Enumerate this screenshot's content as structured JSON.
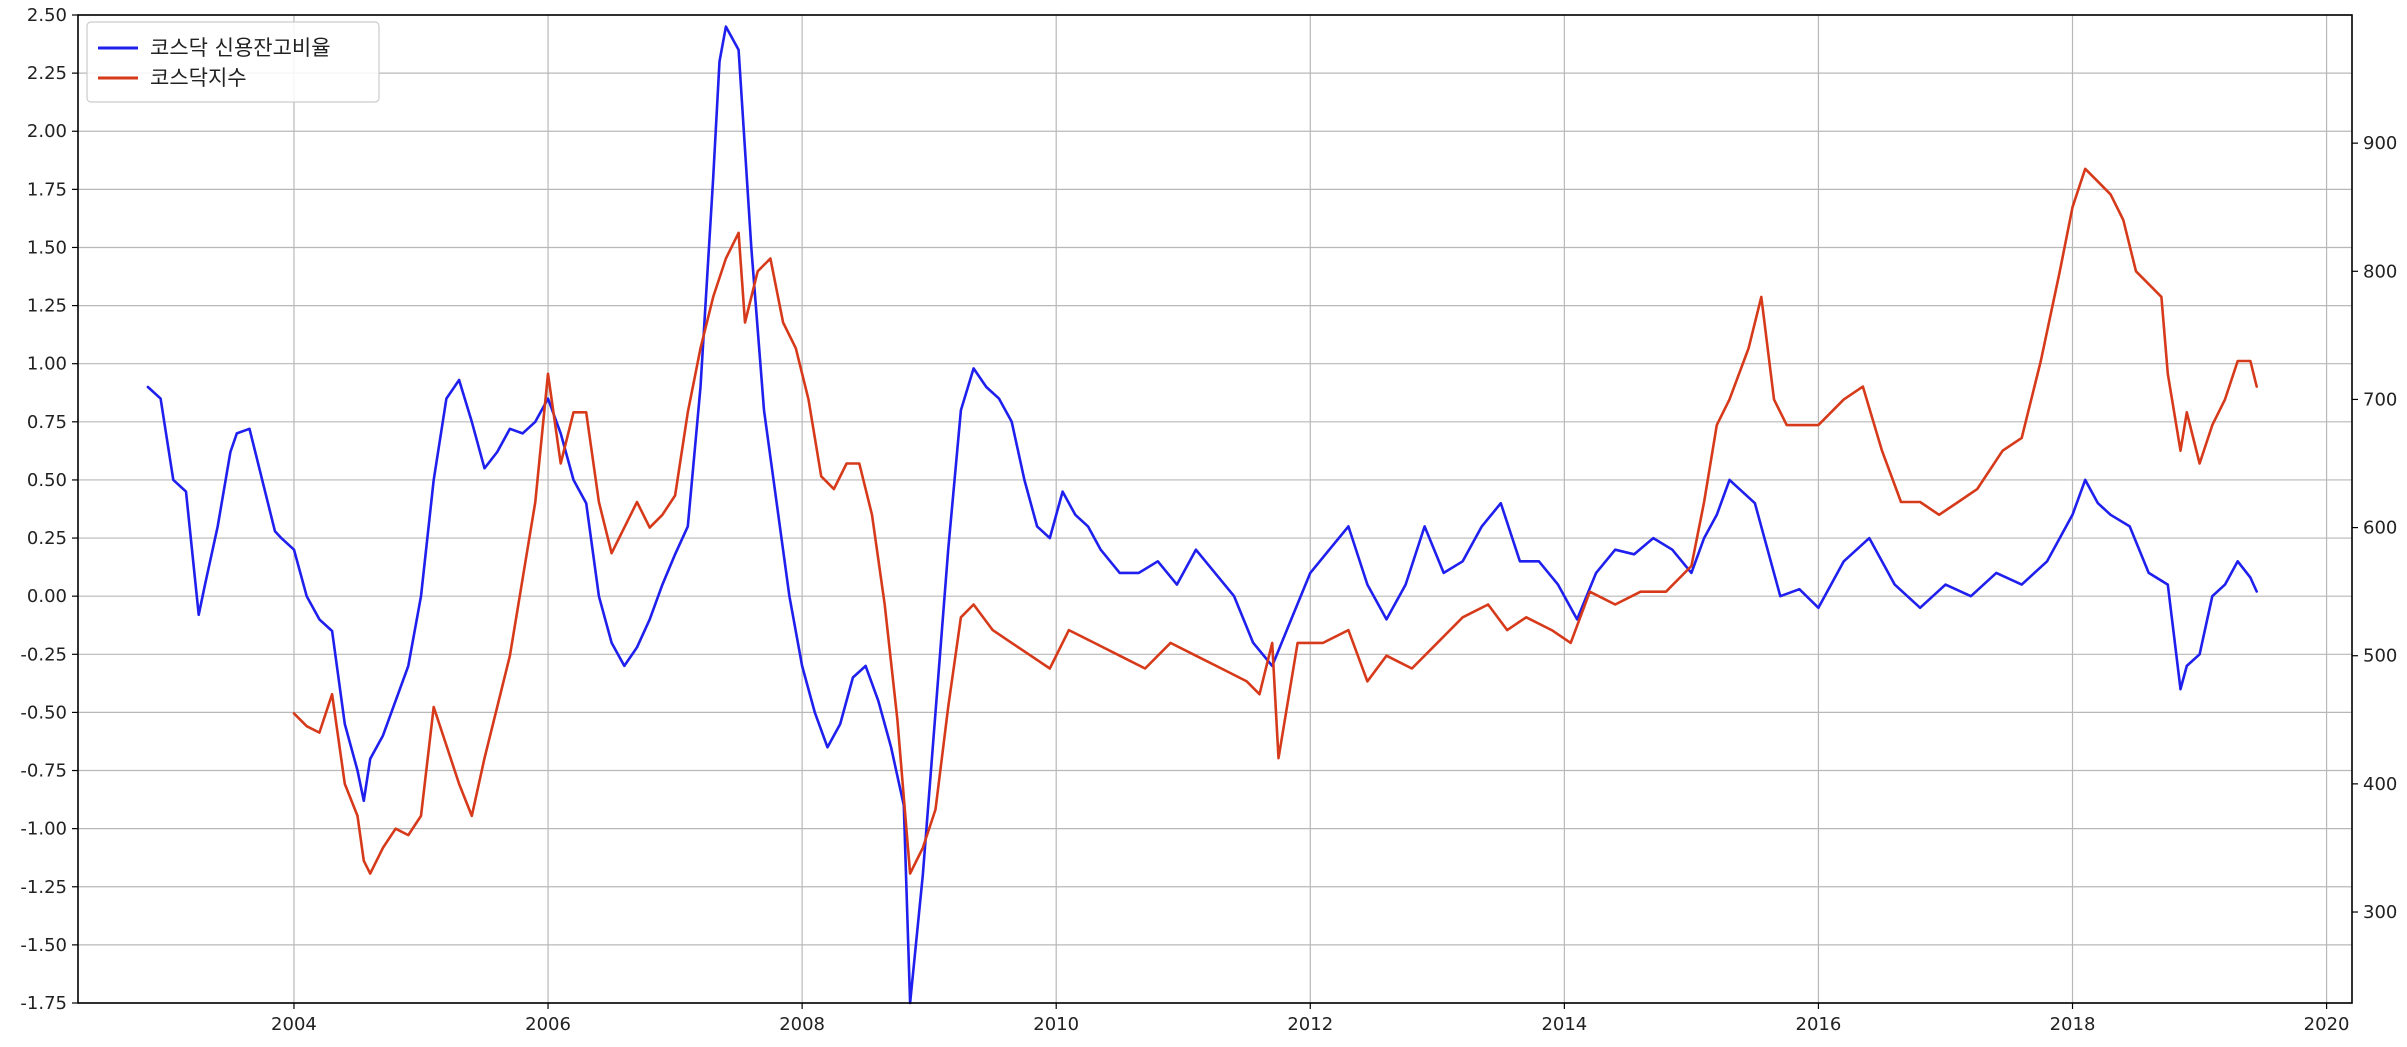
{
  "chart_data": {
    "type": "line",
    "title": "",
    "xlabel": "",
    "ylabel": "",
    "xlim": [
      2002.3,
      2020.2
    ],
    "x_ticks": [
      2004,
      2006,
      2008,
      2010,
      2012,
      2014,
      2016,
      2018,
      2020
    ],
    "y_left": {
      "ylim": [
        -1.75,
        2.5
      ],
      "ticks": [
        "2.50",
        "2.25",
        "2.00",
        "1.75",
        "1.50",
        "1.25",
        "1.00",
        "0.75",
        "0.50",
        "0.25",
        "0.00",
        "-0.25",
        "-0.50",
        "-0.75",
        "-1.00",
        "-1.25",
        "-1.50",
        "-1.75"
      ]
    },
    "y_right": {
      "ylim": [
        229,
        1000
      ],
      "ticks": [
        "900",
        "800",
        "700",
        "600",
        "500",
        "400",
        "300"
      ]
    },
    "grid": true,
    "legend_position": "top-left",
    "series": [
      {
        "name": "코스닥 신용잔고비율",
        "axis": "left",
        "color": "#1f1fee",
        "x": [
          2002.85,
          2002.95,
          2003.05,
          2003.15,
          2003.25,
          2003.3,
          2003.4,
          2003.5,
          2003.55,
          2003.65,
          2003.75,
          2003.85,
          2003.9,
          2004.0,
          2004.1,
          2004.2,
          2004.3,
          2004.4,
          2004.5,
          2004.55,
          2004.6,
          2004.7,
          2004.8,
          2004.9,
          2005.0,
          2005.1,
          2005.2,
          2005.3,
          2005.4,
          2005.5,
          2005.6,
          2005.7,
          2005.8,
          2005.9,
          2006.0,
          2006.1,
          2006.2,
          2006.3,
          2006.4,
          2006.5,
          2006.6,
          2006.7,
          2006.8,
          2006.9,
          2007.0,
          2007.1,
          2007.2,
          2007.3,
          2007.35,
          2007.4,
          2007.5,
          2007.6,
          2007.7,
          2007.8,
          2007.9,
          2008.0,
          2008.1,
          2008.2,
          2008.3,
          2008.4,
          2008.5,
          2008.6,
          2008.7,
          2008.8,
          2008.85,
          2008.95,
          2009.05,
          2009.15,
          2009.25,
          2009.35,
          2009.45,
          2009.55,
          2009.65,
          2009.75,
          2009.85,
          2009.95,
          2010.05,
          2010.15,
          2010.25,
          2010.35,
          2010.5,
          2010.65,
          2010.8,
          2010.95,
          2011.1,
          2011.25,
          2011.4,
          2011.55,
          2011.7,
          2011.85,
          2012.0,
          2012.15,
          2012.3,
          2012.45,
          2012.6,
          2012.75,
          2012.9,
          2013.05,
          2013.2,
          2013.35,
          2013.5,
          2013.65,
          2013.8,
          2013.95,
          2014.1,
          2014.25,
          2014.4,
          2014.55,
          2014.7,
          2014.85,
          2015.0,
          2015.1,
          2015.2,
          2015.3,
          2015.4,
          2015.5,
          2015.6,
          2015.7,
          2015.85,
          2016.0,
          2016.2,
          2016.4,
          2016.6,
          2016.8,
          2017.0,
          2017.2,
          2017.4,
          2017.6,
          2017.8,
          2018.0,
          2018.1,
          2018.2,
          2018.3,
          2018.45,
          2018.6,
          2018.75,
          2018.85,
          2018.9,
          2019.0,
          2019.1,
          2019.2,
          2019.3,
          2019.4,
          2019.45
        ],
        "values": [
          0.9,
          0.85,
          0.5,
          0.45,
          -0.08,
          0.05,
          0.3,
          0.62,
          0.7,
          0.72,
          0.5,
          0.28,
          0.25,
          0.2,
          0.0,
          -0.1,
          -0.15,
          -0.55,
          -0.75,
          -0.88,
          -0.7,
          -0.6,
          -0.45,
          -0.3,
          0.0,
          0.5,
          0.85,
          0.93,
          0.75,
          0.55,
          0.62,
          0.72,
          0.7,
          0.75,
          0.85,
          0.7,
          0.5,
          0.4,
          0.0,
          -0.2,
          -0.3,
          -0.22,
          -0.1,
          0.05,
          0.18,
          0.3,
          0.9,
          1.8,
          2.3,
          2.45,
          2.35,
          1.5,
          0.8,
          0.4,
          0.0,
          -0.3,
          -0.5,
          -0.65,
          -0.55,
          -0.35,
          -0.3,
          -0.45,
          -0.65,
          -0.9,
          -1.75,
          -1.2,
          -0.5,
          0.2,
          0.8,
          0.98,
          0.9,
          0.85,
          0.75,
          0.5,
          0.3,
          0.25,
          0.45,
          0.35,
          0.3,
          0.2,
          0.1,
          0.1,
          0.15,
          0.05,
          0.2,
          0.1,
          0.0,
          -0.2,
          -0.3,
          -0.1,
          0.1,
          0.2,
          0.3,
          0.05,
          -0.1,
          0.05,
          0.3,
          0.1,
          0.15,
          0.3,
          0.4,
          0.15,
          0.15,
          0.05,
          -0.1,
          0.1,
          0.2,
          0.18,
          0.25,
          0.2,
          0.1,
          0.25,
          0.35,
          0.5,
          0.45,
          0.4,
          0.2,
          0.0,
          0.03,
          -0.05,
          0.15,
          0.25,
          0.05,
          -0.05,
          0.05,
          0.0,
          0.1,
          0.05,
          0.15,
          0.35,
          0.5,
          0.4,
          0.35,
          0.3,
          0.1,
          0.05,
          -0.4,
          -0.3,
          -0.25,
          0.0,
          0.05,
          0.15,
          0.08,
          0.02
        ]
      },
      {
        "name": "코스닥지수",
        "axis": "right",
        "color": "#d63a1a",
        "x": [
          2004.0,
          2004.1,
          2004.2,
          2004.3,
          2004.4,
          2004.5,
          2004.55,
          2004.6,
          2004.7,
          2004.8,
          2004.9,
          2005.0,
          2005.1,
          2005.2,
          2005.3,
          2005.4,
          2005.5,
          2005.6,
          2005.7,
          2005.8,
          2005.9,
          2006.0,
          2006.1,
          2006.2,
          2006.3,
          2006.4,
          2006.5,
          2006.6,
          2006.7,
          2006.8,
          2006.9,
          2007.0,
          2007.1,
          2007.2,
          2007.3,
          2007.4,
          2007.5,
          2007.55,
          2007.65,
          2007.75,
          2007.85,
          2007.95,
          2008.05,
          2008.15,
          2008.25,
          2008.35,
          2008.45,
          2008.55,
          2008.65,
          2008.75,
          2008.85,
          2008.95,
          2009.05,
          2009.15,
          2009.25,
          2009.35,
          2009.5,
          2009.65,
          2009.8,
          2009.95,
          2010.1,
          2010.3,
          2010.5,
          2010.7,
          2010.9,
          2011.1,
          2011.3,
          2011.5,
          2011.6,
          2011.7,
          2011.75,
          2011.9,
          2012.1,
          2012.3,
          2012.45,
          2012.6,
          2012.8,
          2013.0,
          2013.2,
          2013.4,
          2013.55,
          2013.7,
          2013.9,
          2014.05,
          2014.2,
          2014.4,
          2014.6,
          2014.8,
          2015.0,
          2015.1,
          2015.2,
          2015.3,
          2015.45,
          2015.55,
          2015.65,
          2015.75,
          2015.9,
          2016.0,
          2016.2,
          2016.35,
          2016.5,
          2016.65,
          2016.8,
          2016.95,
          2017.1,
          2017.25,
          2017.45,
          2017.6,
          2017.75,
          2017.9,
          2018.0,
          2018.1,
          2018.2,
          2018.3,
          2018.4,
          2018.5,
          2018.6,
          2018.7,
          2018.75,
          2018.85,
          2018.9,
          2019.0,
          2019.1,
          2019.2,
          2019.3,
          2019.4,
          2019.45
        ],
        "values": [
          455,
          445,
          440,
          470,
          400,
          375,
          340,
          330,
          350,
          365,
          360,
          375,
          460,
          430,
          400,
          375,
          420,
          460,
          500,
          560,
          620,
          720,
          650,
          690,
          690,
          620,
          580,
          600,
          620,
          600,
          610,
          625,
          690,
          740,
          780,
          810,
          830,
          760,
          800,
          810,
          760,
          740,
          700,
          640,
          630,
          650,
          650,
          610,
          540,
          450,
          330,
          350,
          380,
          460,
          530,
          540,
          520,
          510,
          500,
          490,
          520,
          510,
          500,
          490,
          510,
          500,
          490,
          480,
          470,
          510,
          420,
          510,
          510,
          520,
          480,
          500,
          490,
          510,
          530,
          540,
          520,
          530,
          520,
          510,
          550,
          540,
          550,
          550,
          570,
          620,
          680,
          700,
          740,
          780,
          700,
          680,
          680,
          680,
          700,
          710,
          660,
          620,
          620,
          610,
          620,
          630,
          660,
          670,
          730,
          800,
          850,
          880,
          870,
          860,
          840,
          800,
          790,
          780,
          720,
          660,
          690,
          650,
          680,
          700,
          730,
          730,
          710
        ]
      }
    ]
  }
}
